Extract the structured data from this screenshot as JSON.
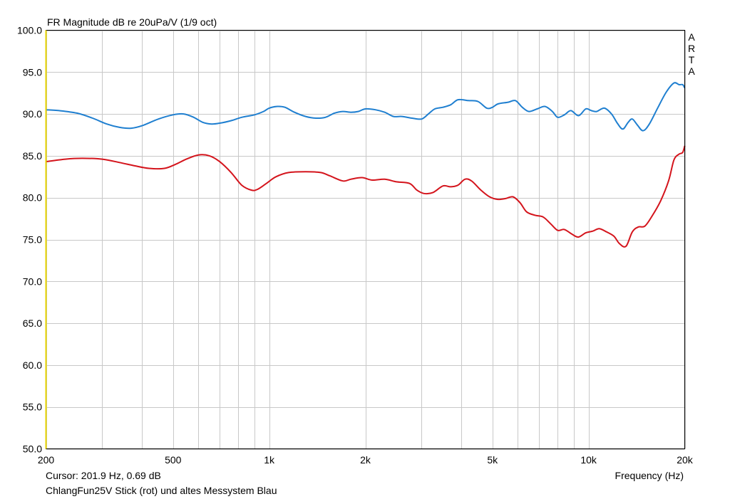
{
  "chart_data": {
    "type": "line",
    "title": "FR Magnitude dB re 20uPa/V (1/9 oct)",
    "watermark": [
      "A",
      "R",
      "T",
      "A"
    ],
    "xlabel": "Frequency (Hz)",
    "xscale": "log",
    "xlim": [
      200,
      20000
    ],
    "ylim": [
      50.0,
      100.0
    ],
    "x_ticks": [
      {
        "value": 200,
        "label": "200"
      },
      {
        "value": 500,
        "label": "500"
      },
      {
        "value": 1000,
        "label": "1k"
      },
      {
        "value": 2000,
        "label": "2k"
      },
      {
        "value": 5000,
        "label": "5k"
      },
      {
        "value": 10000,
        "label": "10k"
      },
      {
        "value": 20000,
        "label": "20k"
      }
    ],
    "x_minor_grid": [
      300,
      400,
      600,
      700,
      800,
      900,
      3000,
      4000,
      6000,
      7000,
      8000,
      9000
    ],
    "y_ticks": [
      {
        "value": 100,
        "label": "100.0"
      },
      {
        "value": 95,
        "label": "95.0"
      },
      {
        "value": 90,
        "label": "90.0"
      },
      {
        "value": 85,
        "label": "85.0"
      },
      {
        "value": 80,
        "label": "80.0"
      },
      {
        "value": 75,
        "label": "75.0"
      },
      {
        "value": 70,
        "label": "70.0"
      },
      {
        "value": 65,
        "label": "65.0"
      },
      {
        "value": 60,
        "label": "60.0"
      },
      {
        "value": 55,
        "label": "55.0"
      },
      {
        "value": 50,
        "label": "50.0"
      }
    ],
    "grid": true,
    "cursor_text": "Cursor: 201.9 Hz, 0.69 dB",
    "caption": "ChlangFun25V Stick (rot) und altes Messystem Blau",
    "series": [
      {
        "color": "#1f7fd0",
        "points": [
          [
            200,
            90.5
          ],
          [
            220,
            90.4
          ],
          [
            250,
            90.1
          ],
          [
            280,
            89.5
          ],
          [
            310,
            88.8
          ],
          [
            340,
            88.4
          ],
          [
            370,
            88.3
          ],
          [
            400,
            88.6
          ],
          [
            450,
            89.4
          ],
          [
            500,
            89.9
          ],
          [
            540,
            90.0
          ],
          [
            580,
            89.6
          ],
          [
            620,
            89.0
          ],
          [
            660,
            88.8
          ],
          [
            700,
            88.9
          ],
          [
            760,
            89.2
          ],
          [
            820,
            89.6
          ],
          [
            900,
            89.9
          ],
          [
            960,
            90.3
          ],
          [
            1000,
            90.7
          ],
          [
            1060,
            90.9
          ],
          [
            1120,
            90.8
          ],
          [
            1200,
            90.2
          ],
          [
            1300,
            89.7
          ],
          [
            1400,
            89.5
          ],
          [
            1500,
            89.6
          ],
          [
            1600,
            90.1
          ],
          [
            1700,
            90.3
          ],
          [
            1800,
            90.2
          ],
          [
            1900,
            90.3
          ],
          [
            2000,
            90.6
          ],
          [
            2150,
            90.5
          ],
          [
            2300,
            90.2
          ],
          [
            2450,
            89.7
          ],
          [
            2600,
            89.7
          ],
          [
            2800,
            89.5
          ],
          [
            3000,
            89.4
          ],
          [
            3150,
            90.0
          ],
          [
            3300,
            90.6
          ],
          [
            3500,
            90.8
          ],
          [
            3700,
            91.1
          ],
          [
            3900,
            91.7
          ],
          [
            4200,
            91.6
          ],
          [
            4500,
            91.5
          ],
          [
            4800,
            90.7
          ],
          [
            5000,
            90.8
          ],
          [
            5200,
            91.2
          ],
          [
            5600,
            91.4
          ],
          [
            5900,
            91.6
          ],
          [
            6200,
            90.8
          ],
          [
            6500,
            90.3
          ],
          [
            6900,
            90.6
          ],
          [
            7300,
            90.9
          ],
          [
            7700,
            90.3
          ],
          [
            8000,
            89.6
          ],
          [
            8400,
            89.9
          ],
          [
            8800,
            90.4
          ],
          [
            9300,
            89.8
          ],
          [
            9800,
            90.6
          ],
          [
            10200,
            90.4
          ],
          [
            10600,
            90.3
          ],
          [
            11200,
            90.7
          ],
          [
            11800,
            90.0
          ],
          [
            12300,
            88.9
          ],
          [
            12800,
            88.2
          ],
          [
            13300,
            89.0
          ],
          [
            13700,
            89.4
          ],
          [
            14200,
            88.7
          ],
          [
            14800,
            88.0
          ],
          [
            15500,
            88.8
          ],
          [
            16500,
            90.8
          ],
          [
            17500,
            92.6
          ],
          [
            18500,
            93.7
          ],
          [
            19200,
            93.5
          ],
          [
            19700,
            93.5
          ],
          [
            20000,
            93.1
          ]
        ]
      },
      {
        "color": "#d4141c",
        "points": [
          [
            200,
            84.3
          ],
          [
            230,
            84.6
          ],
          [
            260,
            84.7
          ],
          [
            300,
            84.6
          ],
          [
            340,
            84.2
          ],
          [
            380,
            83.8
          ],
          [
            420,
            83.5
          ],
          [
            470,
            83.5
          ],
          [
            510,
            84.0
          ],
          [
            550,
            84.6
          ],
          [
            600,
            85.1
          ],
          [
            650,
            85.0
          ],
          [
            700,
            84.3
          ],
          [
            760,
            83.0
          ],
          [
            820,
            81.5
          ],
          [
            880,
            80.9
          ],
          [
            920,
            81.0
          ],
          [
            980,
            81.7
          ],
          [
            1050,
            82.5
          ],
          [
            1150,
            83.0
          ],
          [
            1300,
            83.1
          ],
          [
            1450,
            83.0
          ],
          [
            1550,
            82.6
          ],
          [
            1700,
            82.0
          ],
          [
            1800,
            82.2
          ],
          [
            1950,
            82.4
          ],
          [
            2100,
            82.1
          ],
          [
            2300,
            82.2
          ],
          [
            2500,
            81.9
          ],
          [
            2750,
            81.7
          ],
          [
            2900,
            80.9
          ],
          [
            3050,
            80.5
          ],
          [
            3250,
            80.6
          ],
          [
            3500,
            81.4
          ],
          [
            3700,
            81.3
          ],
          [
            3900,
            81.5
          ],
          [
            4100,
            82.2
          ],
          [
            4300,
            82.0
          ],
          [
            4600,
            80.9
          ],
          [
            4900,
            80.1
          ],
          [
            5200,
            79.8
          ],
          [
            5500,
            79.9
          ],
          [
            5800,
            80.1
          ],
          [
            6100,
            79.4
          ],
          [
            6400,
            78.3
          ],
          [
            6800,
            77.9
          ],
          [
            7200,
            77.7
          ],
          [
            7600,
            76.9
          ],
          [
            8000,
            76.1
          ],
          [
            8400,
            76.2
          ],
          [
            8900,
            75.6
          ],
          [
            9300,
            75.3
          ],
          [
            9800,
            75.8
          ],
          [
            10300,
            76.0
          ],
          [
            10800,
            76.3
          ],
          [
            11400,
            75.9
          ],
          [
            12000,
            75.4
          ],
          [
            12500,
            74.5
          ],
          [
            13100,
            74.2
          ],
          [
            13700,
            75.9
          ],
          [
            14300,
            76.5
          ],
          [
            15000,
            76.6
          ],
          [
            15800,
            77.8
          ],
          [
            16800,
            79.6
          ],
          [
            17800,
            82.0
          ],
          [
            18500,
            84.5
          ],
          [
            19200,
            85.2
          ],
          [
            19700,
            85.4
          ],
          [
            20000,
            86.2
          ]
        ]
      }
    ]
  }
}
